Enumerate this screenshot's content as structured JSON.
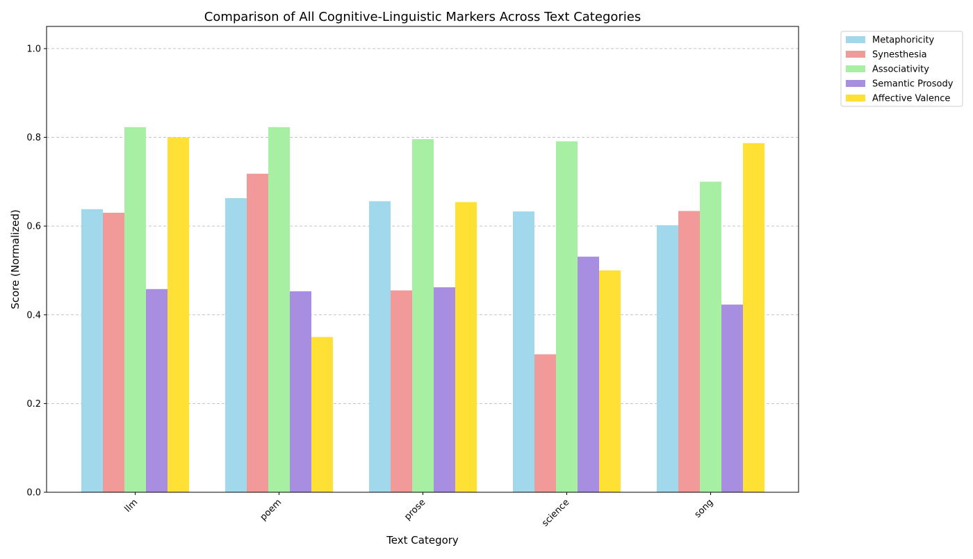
{
  "chart_data": {
    "type": "bar",
    "title": "Comparison of All Cognitive-Linguistic Markers Across Text Categories",
    "xlabel": "Text Category",
    "ylabel": "Score (Normalized)",
    "categories": [
      "llm",
      "poem",
      "prose",
      "science",
      "song"
    ],
    "ylim": [
      0,
      1.05
    ],
    "yticks": [
      "0.0",
      "0.2",
      "0.4",
      "0.6",
      "0.8",
      "1.0"
    ],
    "grid": "horizontal dashed",
    "legend_position": "outside-top-right",
    "series": [
      {
        "name": "Metaphoricity",
        "color": "#a1d8ec",
        "values": [
          0.638,
          0.663,
          0.656,
          0.633,
          0.602
        ]
      },
      {
        "name": "Synesthesia",
        "color": "#f29a99",
        "values": [
          0.63,
          0.718,
          0.455,
          0.311,
          0.634
        ]
      },
      {
        "name": "Associativity",
        "color": "#a6efa3",
        "values": [
          0.823,
          0.823,
          0.796,
          0.791,
          0.7
        ]
      },
      {
        "name": "Semantic Prosody",
        "color": "#a88ee1",
        "values": [
          0.458,
          0.453,
          0.462,
          0.531,
          0.423
        ]
      },
      {
        "name": "Affective Valence",
        "color": "#ffe135",
        "values": [
          0.8,
          0.35,
          0.654,
          0.5,
          0.787
        ]
      }
    ]
  }
}
